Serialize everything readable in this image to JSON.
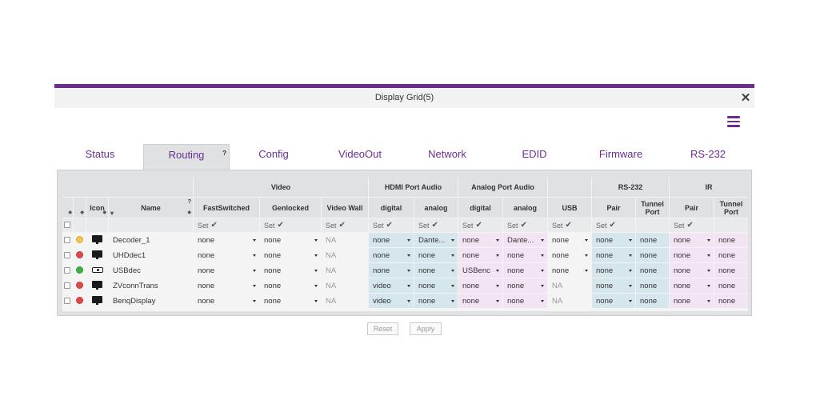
{
  "dialog": {
    "title": "Display Grid(5)"
  },
  "tabs": [
    "Status",
    "Routing",
    "Config",
    "VideoOut",
    "Network",
    "EDID",
    "Firmware",
    "RS-232"
  ],
  "active_tab": 1,
  "tab_help": "?",
  "groups": [
    "Video",
    "HDMI Port Audio",
    "Analog Port Audio",
    "RS-232",
    "IR"
  ],
  "columns": {
    "icon": "Icon",
    "name": "Name",
    "fastswitched": "FastSwitched",
    "genlocked": "Genlocked",
    "videowall": "Video Wall",
    "hdmi_digital": "digital",
    "hdmi_analog": "analog",
    "analog_digital": "digital",
    "analog_analog": "analog",
    "usb": "USB",
    "rs232_pair": "Pair",
    "rs232_tunnel": "Tunnel Port",
    "ir_pair": "Pair",
    "ir_tunnel": "Tunnel Port"
  },
  "set_label": "Set",
  "rows": [
    {
      "status": "#f2c94c",
      "icon": "monitor-icon",
      "name": "Decoder_1",
      "fastswitched": "none",
      "genlocked": "none",
      "videowall": "NA",
      "hdmi_digital": "none",
      "hdmi_analog": "Dante...",
      "analog_digital": "none",
      "analog_analog": "Dante...",
      "usb": "none",
      "rs232_pair": "none",
      "rs232_tunnel": "none",
      "ir_pair": "none",
      "ir_tunnel": "none"
    },
    {
      "status": "#e04848",
      "icon": "monitor-icon",
      "name": "UHDdec1",
      "fastswitched": "none",
      "genlocked": "none",
      "videowall": "NA",
      "hdmi_digital": "none",
      "hdmi_analog": "none",
      "analog_digital": "none",
      "analog_analog": "none",
      "usb": "none",
      "rs232_pair": "none",
      "rs232_tunnel": "none",
      "ir_pair": "none",
      "ir_tunnel": "none"
    },
    {
      "status": "#3cb043",
      "icon": "projector-icon",
      "name": "USBdec",
      "fastswitched": "none",
      "genlocked": "none",
      "videowall": "NA",
      "hdmi_digital": "none",
      "hdmi_analog": "none",
      "analog_digital": "USBenc",
      "analog_analog": "none",
      "usb": "none",
      "rs232_pair": "none",
      "rs232_tunnel": "none",
      "ir_pair": "none",
      "ir_tunnel": "none"
    },
    {
      "status": "#e04848",
      "icon": "monitor-icon",
      "name": "ZVconnTrans",
      "fastswitched": "none",
      "genlocked": "none",
      "videowall": "NA",
      "hdmi_digital": "video",
      "hdmi_analog": "none",
      "analog_digital": "none",
      "analog_analog": "none",
      "usb": "NA",
      "rs232_pair": "none",
      "rs232_tunnel": "none",
      "ir_pair": "none",
      "ir_tunnel": "none"
    },
    {
      "status": "#e04848",
      "icon": "monitor-icon",
      "name": "BenqDisplay",
      "fastswitched": "none",
      "genlocked": "none",
      "videowall": "NA",
      "hdmi_digital": "video",
      "hdmi_analog": "none",
      "analog_digital": "none",
      "analog_analog": "none",
      "usb": "NA",
      "rs232_pair": "none",
      "rs232_tunnel": "none",
      "ir_pair": "none",
      "ir_tunnel": "none"
    }
  ],
  "buttons": {
    "reset": "Reset",
    "apply": "Apply"
  },
  "colors": {
    "accent": "#6b2e8f",
    "hdmi_bg": "#d5e6ec",
    "analog_bg": "#f3e4f3",
    "rs232_bg": "#d5e6ec",
    "ir_bg": "#f3e4f3"
  }
}
